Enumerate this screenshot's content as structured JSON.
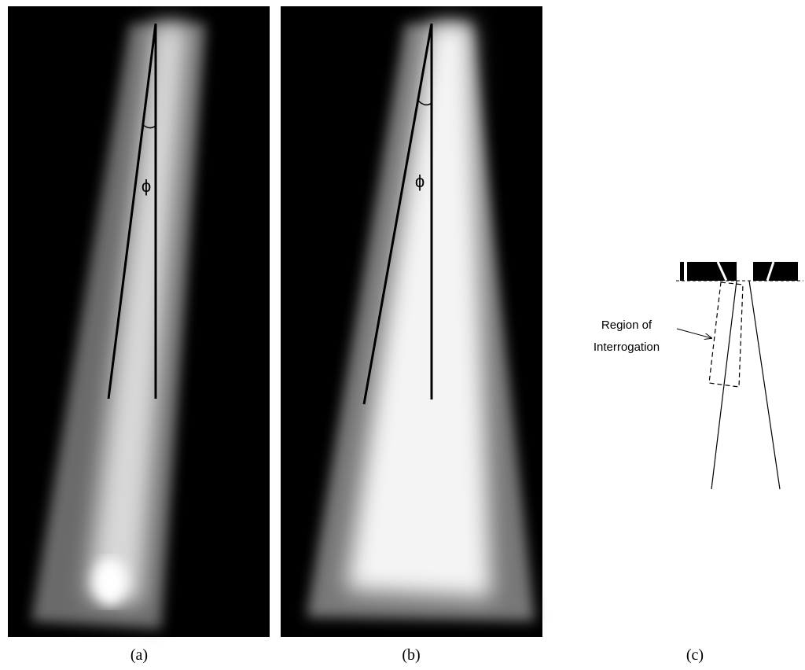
{
  "panels": [
    {
      "phi": "ϕ",
      "caption": "(a)"
    },
    {
      "phi": "ϕ",
      "caption": "(b)"
    },
    {
      "label": [
        "Region of",
        "Interrogation"
      ],
      "caption": "(c)"
    }
  ]
}
